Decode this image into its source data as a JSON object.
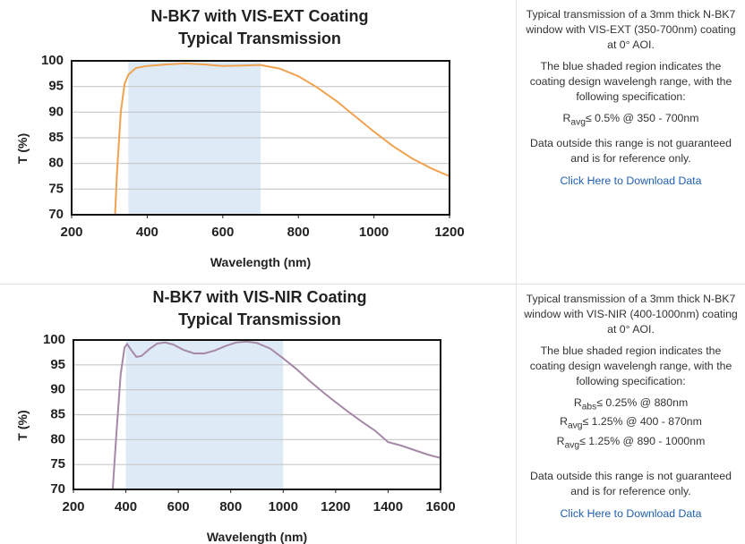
{
  "chart_data": [
    {
      "type": "line",
      "title": [
        "N-BK7 with VIS-EXT Coating",
        "Typical Transmission"
      ],
      "xlabel": "Wavelength (nm)",
      "ylabel": "T (%)",
      "x": [
        315,
        320,
        330,
        340,
        350,
        370,
        400,
        450,
        500,
        550,
        600,
        650,
        700,
        750,
        800,
        850,
        900,
        950,
        1000,
        1050,
        1100,
        1150,
        1200
      ],
      "values": [
        70,
        78,
        90,
        95.5,
        97.3,
        98.6,
        99.0,
        99.3,
        99.5,
        99.3,
        99.0,
        99.1,
        99.2,
        98.5,
        97.0,
        94.8,
        92.2,
        89.2,
        86.2,
        83.4,
        81.0,
        79.1,
        77.5
      ],
      "color": "#f0a24f",
      "xlim": [
        200,
        1200
      ],
      "ylim": [
        70,
        100
      ],
      "xticks": [
        200,
        400,
        600,
        800,
        1000,
        1200
      ],
      "yticks": [
        70,
        75,
        80,
        85,
        90,
        95,
        100
      ],
      "grid": true,
      "shade": [
        350,
        700
      ],
      "shade_color": "#deebf7"
    },
    {
      "type": "line",
      "title": [
        "N-BK7 with VIS-NIR Coating",
        "Typical Transmission"
      ],
      "xlabel": "Wavelength (nm)",
      "ylabel": "T (%)",
      "x": [
        350,
        365,
        380,
        395,
        405,
        420,
        440,
        460,
        490,
        520,
        550,
        580,
        620,
        660,
        700,
        740,
        780,
        820,
        860,
        900,
        950,
        1000,
        1050,
        1100,
        1150,
        1200,
        1250,
        1300,
        1350,
        1400,
        1450,
        1500,
        1550,
        1600
      ],
      "values": [
        70,
        82,
        93,
        98.5,
        99.2,
        98.0,
        96.6,
        96.8,
        98.2,
        99.3,
        99.5,
        99.1,
        98.0,
        97.3,
        97.3,
        97.9,
        98.8,
        99.5,
        99.7,
        99.4,
        98.3,
        96.3,
        94.2,
        91.8,
        89.6,
        87.5,
        85.5,
        83.6,
        81.8,
        79.5,
        78.8,
        77.9,
        77.0,
        76.3
      ],
      "color": "#a688a7",
      "xlim": [
        200,
        1600
      ],
      "ylim": [
        70,
        100
      ],
      "xticks": [
        200,
        400,
        600,
        800,
        1000,
        1200,
        1400,
        1600
      ],
      "yticks": [
        70,
        75,
        80,
        85,
        90,
        95,
        100
      ],
      "grid": true,
      "shade": [
        400,
        1000
      ],
      "shade_color": "#deebf7"
    }
  ],
  "panels": [
    {
      "description": "Typical transmission of a 3mm thick N-BK7 window with VIS-EXT (350-700nm) coating at 0° AOI.",
      "note": "The blue shaded region indicates the coating design wavelengh range, with the following specification:",
      "specs": [
        {
          "symbol": "R",
          "sub": "avg",
          "text": "≤ 0.5% @ 350 - 700nm"
        }
      ],
      "disclaimer": "Data outside this range is not guaranteed and is for reference only.",
      "link": "Click Here to Download Data"
    },
    {
      "description": "Typical transmission of a 3mm thick N-BK7 window with VIS-NIR (400-1000nm) coating at 0° AOI.",
      "note": "The blue shaded region indicates the coating design wavelengh range, with the following specification:",
      "specs": [
        {
          "symbol": "R",
          "sub": "abs",
          "text": "≤ 0.25% @ 880nm"
        },
        {
          "symbol": "R",
          "sub": "avg",
          "text": "≤ 1.25% @ 400 - 870nm"
        },
        {
          "symbol": "R",
          "sub": "avg",
          "text": "≤ 1.25% @ 890 - 1000nm"
        }
      ],
      "disclaimer": "Data outside this range is not guaranteed and is for reference only.",
      "link": "Click Here to Download Data"
    }
  ]
}
